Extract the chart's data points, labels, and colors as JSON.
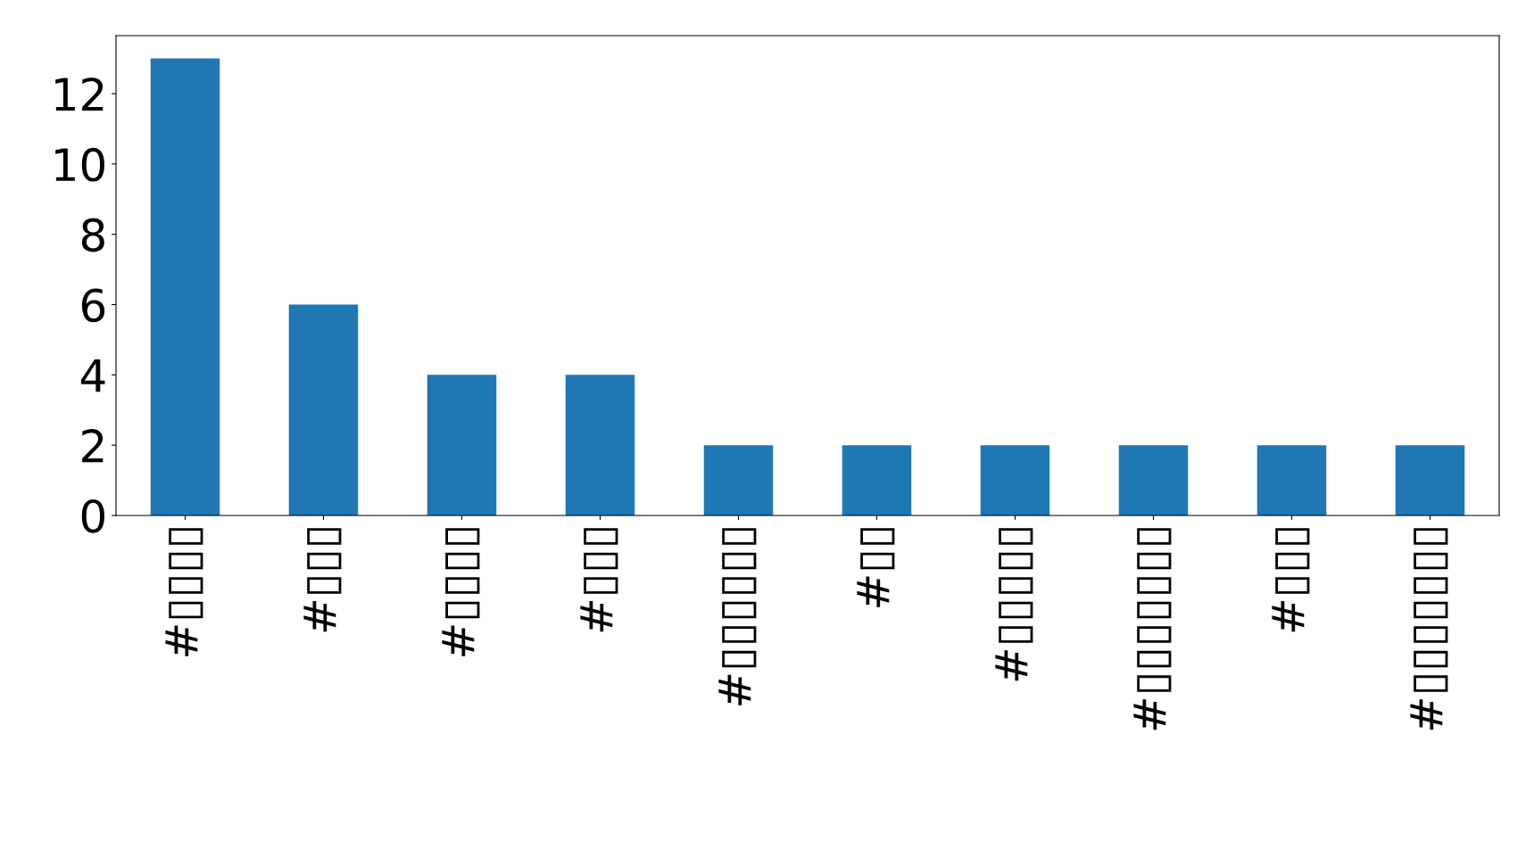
{
  "chart_data": {
    "type": "bar",
    "categories": [
      "#▯▯▯▯",
      "#▯▯▯",
      "#▯▯▯▯",
      "#▯▯▯",
      "#▯▯▯▯▯▯",
      "#▯▯",
      "#▯▯▯▯▯",
      "#▯▯▯▯▯▯▯",
      "#▯▯▯",
      "#▯▯▯▯▯▯▯"
    ],
    "values": [
      13,
      6,
      4,
      4,
      2,
      2,
      2,
      2,
      2,
      2
    ],
    "color": "#1f77b4",
    "ylim": [
      0,
      13.65
    ],
    "yticks": [
      0,
      2,
      4,
      6,
      8,
      10,
      12
    ],
    "grid": false
  }
}
